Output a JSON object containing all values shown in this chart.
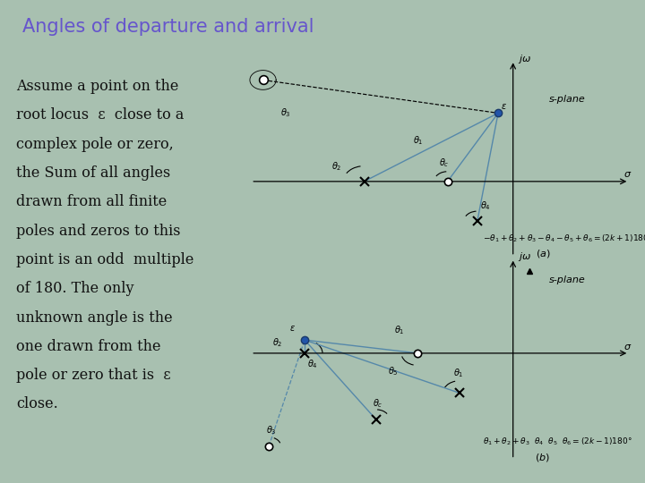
{
  "title": "Angles of departure and arrival",
  "title_color": "#6655cc",
  "title_fontsize": 15,
  "background_color": "#a8c0b0",
  "text_color": "#111111",
  "text_fontsize": 11.5,
  "divider_color": "#607868",
  "diagram_bg": "#f5f5f0",
  "line_color": "#5588aa",
  "text_body_lines": [
    "Assume a point on the",
    "root locus  ε  close to a",
    "complex pole or zero,",
    "the Sum of all angles",
    "drawn from all finite",
    "poles and zeros to this",
    "point is an odd  multiple",
    "of 180. The only",
    "unknown angle is the",
    "one drawn from the",
    "pole or zero that is  ε",
    "close."
  ]
}
